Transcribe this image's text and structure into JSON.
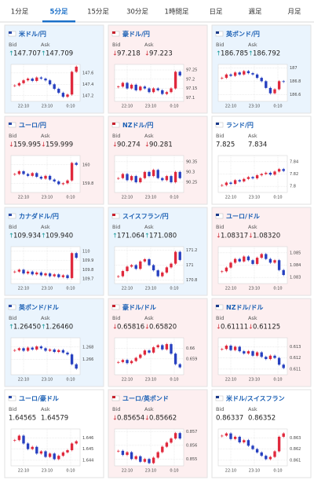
{
  "tabs": [
    "1分足",
    "5分足",
    "15分足",
    "30分足",
    "1時間足",
    "日足",
    "週足",
    "月足"
  ],
  "active_tab": 1,
  "bid_label": "Bid",
  "ask_label": "Ask",
  "arrows": {
    "up": "↑",
    "down": "↓"
  },
  "time_labels": [
    "22:10",
    "23:10",
    "0:10"
  ],
  "cards": [
    {
      "name": "米ドル/円",
      "direction": "up",
      "bid": 147.707,
      "ask": 147.709,
      "ylim": [
        147.1,
        147.75
      ],
      "yticks": [
        147.6,
        147.4,
        147.2
      ],
      "closes": [
        147.38,
        147.42,
        147.47,
        147.5,
        147.46,
        147.52,
        147.5,
        147.47,
        147.4,
        147.32,
        147.25,
        147.18,
        147.22,
        147.62,
        147.71
      ]
    },
    {
      "name": "豪ドル/円",
      "direction": "down",
      "bid": 97.218,
      "ask": 97.223,
      "ylim": [
        97.08,
        97.28
      ],
      "yticks": [
        97.25,
        97.2,
        97.15,
        97.1
      ],
      "closes": [
        97.16,
        97.18,
        97.15,
        97.17,
        97.14,
        97.16,
        97.15,
        97.13,
        97.15,
        97.14,
        97.12,
        97.13,
        97.15,
        97.24,
        97.22
      ]
    },
    {
      "name": "英ポンド/円",
      "direction": "up",
      "bid": 186.785,
      "ask": 186.792,
      "ylim": [
        186.5,
        187.05
      ],
      "yticks": [
        187,
        186.8,
        186.6
      ],
      "closes": [
        186.85,
        186.9,
        186.88,
        186.93,
        186.9,
        186.95,
        186.92,
        186.9,
        186.85,
        186.8,
        186.7,
        186.62,
        186.68,
        186.8,
        186.79
      ]
    },
    {
      "name": "ユーロ/円",
      "direction": "down",
      "bid": 159.995,
      "ask": 159.999,
      "ylim": [
        159.7,
        160.1
      ],
      "yticks": [
        160,
        159.8
      ],
      "closes": [
        159.9,
        159.93,
        159.9,
        159.88,
        159.91,
        159.87,
        159.85,
        159.88,
        159.84,
        159.82,
        159.79,
        159.8,
        159.83,
        160.02,
        160
      ]
    },
    {
      "name": "NZドル/円",
      "direction": "down",
      "bid": 90.274,
      "ask": 90.281,
      "ylim": [
        90.2,
        90.38
      ],
      "yticks": [
        90.35,
        90.3,
        90.25
      ],
      "closes": [
        90.27,
        90.29,
        90.26,
        90.28,
        90.25,
        90.27,
        90.3,
        90.28,
        90.31,
        90.27,
        90.26,
        90.28,
        90.25,
        90.3,
        90.27
      ]
    },
    {
      "name": "ランド/円",
      "direction": null,
      "bid": 7.825,
      "ask": 7.834,
      "ylim": [
        7.79,
        7.85
      ],
      "yticks": [
        7.84,
        7.82,
        7.8
      ],
      "closes": [
        7.802,
        7.806,
        7.804,
        7.81,
        7.808,
        7.812,
        7.815,
        7.813,
        7.818,
        7.82,
        7.822,
        7.819,
        7.824,
        7.828,
        7.825
      ]
    },
    {
      "name": "カナダドル/円",
      "direction": "up",
      "bid": 109.934,
      "ask": {
        "value": 109.94,
        "label": "109.940"
      },
      "ylim": [
        109.65,
        110.05
      ],
      "yticks": [
        110,
        109.9,
        109.8,
        109.7
      ],
      "closes": [
        109.78,
        109.8,
        109.76,
        109.78,
        109.75,
        109.77,
        109.74,
        109.76,
        109.73,
        109.75,
        109.72,
        109.74,
        109.71,
        109.98,
        109.93
      ]
    },
    {
      "name": "スイスフラン/円",
      "direction": "up",
      "bid": 171.064,
      "ask": {
        "value": 171.08,
        "label": "171.080"
      },
      "ylim": [
        170.75,
        171.25
      ],
      "yticks": [
        171.2,
        171,
        170.8
      ],
      "closes": [
        170.85,
        170.92,
        170.98,
        171,
        170.95,
        171.05,
        171.08,
        171,
        170.93,
        170.85,
        170.9,
        170.97,
        171.02,
        171.18,
        171.07
      ]
    },
    {
      "name": "ユーロ/ドル",
      "direction": "down",
      "bid": 1.08317,
      "ask": {
        "value": 1.0832,
        "label": "1.08320"
      },
      "ylim": [
        1.0825,
        1.0855
      ],
      "yticks": [
        1.085,
        1.084,
        1.083
      ],
      "closes": [
        1.0835,
        1.0838,
        1.0842,
        1.0845,
        1.0843,
        1.0847,
        1.0844,
        1.0841,
        1.0846,
        1.0849,
        1.0845,
        1.0842,
        1.0844,
        1.0836,
        1.0832
      ]
    },
    {
      "name": "英ポンド/ドル",
      "direction": "up",
      "bid": {
        "value": 1.2645,
        "label": "1.26450"
      },
      "ask": {
        "value": 1.2646,
        "label": "1.26460"
      },
      "ylim": [
        1.2635,
        1.2695
      ],
      "yticks": [
        1.268,
        1.266
      ],
      "closes": [
        1.2675,
        1.2678,
        1.2674,
        1.2679,
        1.2676,
        1.2681,
        1.2678,
        1.2674,
        1.2676,
        1.2672,
        1.2675,
        1.2671,
        1.2668,
        1.2652,
        1.2645
      ]
    },
    {
      "name": "豪ドル/ドル",
      "direction": "down",
      "bid": 0.65816,
      "ask": {
        "value": 0.6582,
        "label": "0.65820"
      },
      "ylim": [
        0.6575,
        0.661
      ],
      "yticks": [
        0.66,
        0.659
      ],
      "closes": [
        0.6587,
        0.6589,
        0.6586,
        0.6588,
        0.6591,
        0.6594,
        0.6598,
        0.6596,
        0.6601,
        0.6603,
        0.6599,
        0.6604,
        0.6595,
        0.6585,
        0.6582
      ]
    },
    {
      "name": "NZドル/ドル",
      "direction": "down",
      "bid": 0.61111,
      "ask": 0.61125,
      "ylim": [
        0.6105,
        0.6138
      ],
      "yticks": [
        0.613,
        0.612,
        0.611
      ],
      "closes": [
        0.6128,
        0.6131,
        0.6127,
        0.613,
        0.6126,
        0.6124,
        0.6126,
        0.6122,
        0.6125,
        0.6121,
        0.6119,
        0.6122,
        0.612,
        0.6114,
        0.6111
      ]
    },
    {
      "name": "ユーロ/豪ドル",
      "direction": null,
      "bid": 1.64565,
      "ask": 1.64579,
      "ylim": [
        1.6435,
        1.6468
      ],
      "yticks": [
        1.646,
        1.645,
        1.644
      ],
      "closes": [
        1.6458,
        1.6462,
        1.6455,
        1.645,
        1.6452,
        1.6446,
        1.6448,
        1.6443,
        1.6446,
        1.6441,
        1.6444,
        1.6447,
        1.6449,
        1.6455,
        1.6457
      ]
    },
    {
      "name": "ユーロ/英ポンド",
      "direction": "down",
      "bid": 0.85654,
      "ask": 0.85662,
      "ylim": [
        0.8545,
        0.8572
      ],
      "yticks": [
        0.857,
        0.856,
        0.855
      ],
      "closes": [
        0.8556,
        0.8553,
        0.8555,
        0.855,
        0.8552,
        0.8548,
        0.855,
        0.8547,
        0.8551,
        0.8555,
        0.8559,
        0.8562,
        0.8565,
        0.8569,
        0.8565
      ]
    },
    {
      "name": "米ドル/スイスフラン",
      "direction": null,
      "bid": 0.86337,
      "ask": 0.86352,
      "ylim": [
        0.8605,
        0.8638
      ],
      "yticks": [
        0.863,
        0.862,
        0.861
      ],
      "closes": [
        0.8632,
        0.8634,
        0.8629,
        0.8631,
        0.8626,
        0.8628,
        0.8623,
        0.862,
        0.8617,
        0.8614,
        0.8611,
        0.8613,
        0.8618,
        0.8631,
        0.8634
      ]
    }
  ]
}
